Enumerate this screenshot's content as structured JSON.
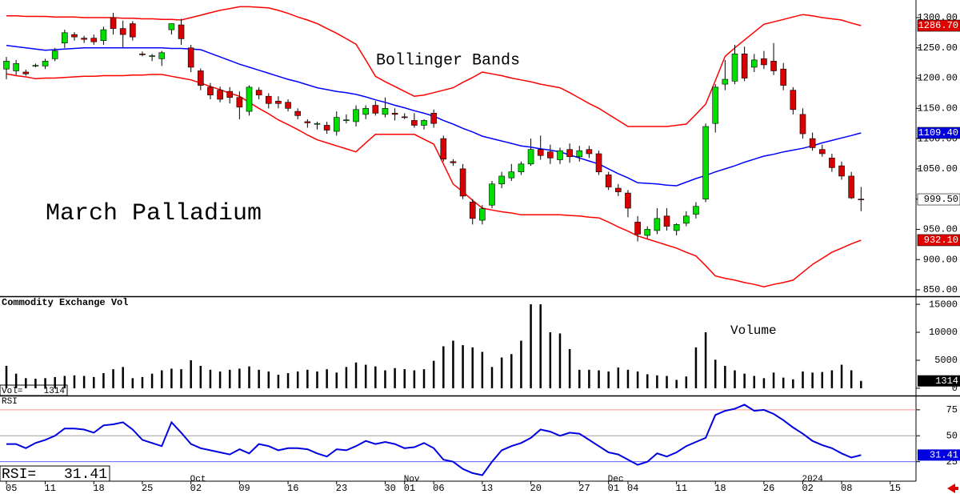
{
  "chart_data": [
    {
      "type": "candlestick",
      "title": "March Palladium",
      "annotation": "Bollinger Bands",
      "categories": [
        "05",
        null,
        null,
        null,
        "11",
        null,
        null,
        null,
        null,
        "18",
        null,
        null,
        null,
        null,
        "25",
        null,
        null,
        null,
        null,
        "02",
        null,
        null,
        null,
        null,
        "09",
        null,
        null,
        null,
        null,
        "16",
        null,
        null,
        null,
        null,
        "23",
        null,
        null,
        null,
        null,
        "30",
        null,
        "01",
        null,
        null,
        "06",
        null,
        null,
        null,
        null,
        "13",
        null,
        null,
        null,
        null,
        "20",
        null,
        null,
        null,
        null,
        "27",
        null,
        null,
        "01",
        null,
        "04",
        null,
        null,
        null,
        null,
        "11",
        null,
        null,
        null,
        "18",
        null,
        null,
        null,
        null,
        "26",
        null,
        null,
        null,
        "02",
        null,
        null,
        null,
        "08",
        null,
        null,
        null,
        null,
        "15"
      ],
      "months": [
        null,
        null,
        null,
        null,
        null,
        null,
        null,
        null,
        null,
        null,
        null,
        null,
        null,
        null,
        null,
        null,
        null,
        null,
        null,
        "Oct",
        null,
        null,
        null,
        null,
        null,
        null,
        null,
        null,
        null,
        null,
        null,
        null,
        null,
        null,
        null,
        null,
        null,
        null,
        null,
        null,
        null,
        "Nov",
        null,
        null,
        null,
        null,
        null,
        null,
        null,
        null,
        null,
        null,
        null,
        null,
        null,
        null,
        null,
        null,
        null,
        null,
        null,
        null,
        "Dec",
        null,
        null,
        null,
        null,
        null,
        null,
        null,
        null,
        null,
        null,
        null,
        null,
        null,
        null,
        null,
        null,
        null,
        null,
        null,
        "2024",
        null,
        null,
        null,
        null,
        null,
        null,
        null,
        null,
        null
      ],
      "open": [
        1215,
        1212,
        1210,
        1221,
        1220,
        1232,
        1258,
        1272,
        1266,
        1266,
        1262,
        1300,
        1282,
        1290,
        1240,
        1236,
        1232,
        1280,
        1288,
        1250,
        1212,
        1185,
        1180,
        1178,
        1168,
        1145,
        1180,
        1170,
        1162,
        1160,
        1145,
        1128,
        1125,
        1122,
        1112,
        1130,
        1128,
        1140,
        1155,
        1140,
        1142,
        1136,
        1130,
        1122,
        1142,
        1100,
        1062,
        1050,
        995,
        965,
        990,
        1025,
        1035,
        1045,
        1058,
        1082,
        1078,
        1065,
        1082,
        1070,
        1082,
        1075,
        1040,
        1018,
        1010,
        962,
        940,
        948,
        972,
        948,
        960,
        975,
        1000,
        1125,
        1190,
        1195,
        1240,
        1218,
        1232,
        1228,
        1215,
        1180,
        1140,
        1100,
        1082,
        1068,
        1055,
        1038,
        1000,
        null,
        null,
        null
      ],
      "high": [
        1235,
        1230,
        1214,
        1224,
        1232,
        1250,
        1280,
        1276,
        1270,
        1272,
        1285,
        1308,
        1295,
        1294,
        1244,
        1240,
        1245,
        1290,
        1298,
        1255,
        1216,
        1192,
        1186,
        1185,
        1178,
        1188,
        1185,
        1175,
        1170,
        1165,
        1150,
        1132,
        1128,
        1128,
        1145,
        1140,
        1155,
        1155,
        1162,
        1168,
        1150,
        1142,
        1142,
        1132,
        1148,
        1105,
        1066,
        1058,
        1000,
        990,
        1030,
        1045,
        1058,
        1062,
        1100,
        1105,
        1090,
        1085,
        1092,
        1088,
        1088,
        1080,
        1045,
        1025,
        1015,
        972,
        955,
        985,
        985,
        960,
        980,
        995,
        1125,
        1190,
        1230,
        1255,
        1252,
        1240,
        1245,
        1258,
        1225,
        1185,
        1150,
        1110,
        1090,
        1075,
        1062,
        1045,
        1020,
        null,
        null,
        null
      ],
      "low": [
        1198,
        1205,
        1204,
        1218,
        1215,
        1228,
        1250,
        1262,
        1258,
        1255,
        1255,
        1272,
        1250,
        1262,
        1236,
        1228,
        1220,
        1272,
        1255,
        1210,
        1180,
        1165,
        1160,
        1158,
        1132,
        1138,
        1165,
        1150,
        1150,
        1145,
        1132,
        1118,
        1115,
        1108,
        1105,
        1125,
        1120,
        1132,
        1138,
        1135,
        1130,
        1132,
        1118,
        1115,
        1118,
        1062,
        1055,
        1000,
        958,
        958,
        985,
        1018,
        1030,
        1040,
        1055,
        1065,
        1058,
        1058,
        1060,
        1062,
        1068,
        1040,
        1015,
        1005,
        970,
        930,
        935,
        942,
        948,
        940,
        955,
        968,
        995,
        1110,
        1180,
        1190,
        1195,
        1210,
        1215,
        1205,
        1180,
        1140,
        1100,
        1080,
        1070,
        1045,
        1032,
        1000,
        980,
        null,
        null,
        null
      ],
      "close": [
        1228,
        1224,
        1207,
        1221,
        1228,
        1245,
        1275,
        1268,
        1264,
        1260,
        1280,
        1282,
        1272,
        1268,
        1239,
        1237,
        1242,
        1290,
        1265,
        1218,
        1188,
        1172,
        1165,
        1168,
        1152,
        1185,
        1172,
        1158,
        1158,
        1150,
        1138,
        1126,
        1125,
        1114,
        1135,
        1131,
        1148,
        1150,
        1142,
        1150,
        1140,
        1135,
        1122,
        1130,
        1125,
        1066,
        1060,
        1005,
        968,
        984,
        1025,
        1038,
        1045,
        1058,
        1082,
        1072,
        1068,
        1080,
        1070,
        1080,
        1075,
        1045,
        1020,
        1012,
        985,
        942,
        950,
        968,
        955,
        958,
        972,
        988,
        1120,
        1185,
        1198,
        1240,
        1200,
        1230,
        1222,
        1212,
        1188,
        1148,
        1108,
        1085,
        1075,
        1052,
        1038,
        1002,
        999.5,
        null,
        null,
        null
      ],
      "up_color": "#00e000",
      "down_color": "#d80000",
      "bands": [
        {
          "color": "#ff0000",
          "values": [
            1303,
            1303,
            1302,
            1302,
            1302,
            1301,
            1301,
            1301,
            1300,
            1300,
            1300,
            1300,
            1299,
            1299,
            1298,
            1298,
            1297,
            1297,
            1296,
            1300,
            1304,
            1308,
            1312,
            1315,
            1318,
            1318,
            1317,
            1316,
            1312,
            1307,
            1301,
            1296,
            1290,
            1282,
            1274,
            1265,
            1256,
            1230,
            1203,
            1194,
            1186,
            1178,
            1170,
            1172,
            1176,
            1180,
            1184,
            1193,
            1201,
            1210,
            1207,
            1204,
            1200,
            1197,
            1194,
            1190,
            1187,
            1184,
            1176,
            1167,
            1158,
            1150,
            1140,
            1130,
            1120,
            1120,
            1120,
            1120,
            1120,
            1122,
            1124,
            1140,
            1157,
            1196,
            1236,
            1250,
            1263,
            1276,
            1289,
            1293,
            1297,
            1301,
            1305,
            1303,
            1300,
            1298,
            1296,
            1291,
            1286.7,
            null,
            null,
            null
          ]
        },
        {
          "color": "#0000ff",
          "values": [
            1254,
            1252,
            1250,
            1248,
            1246,
            1247,
            1248,
            1249,
            1250,
            1250,
            1250,
            1250,
            1250,
            1250,
            1250,
            1250,
            1250,
            1249,
            1249,
            1248,
            1247,
            1241,
            1235,
            1229,
            1223,
            1218,
            1213,
            1208,
            1203,
            1198,
            1194,
            1189,
            1184,
            1181,
            1178,
            1176,
            1173,
            1169,
            1164,
            1160,
            1155,
            1151,
            1146,
            1142,
            1137,
            1130,
            1124,
            1117,
            1111,
            1104,
            1100,
            1096,
            1092,
            1088,
            1086,
            1083,
            1081,
            1078,
            1073,
            1068,
            1063,
            1058,
            1050,
            1042,
            1035,
            1027,
            1026,
            1025,
            1023,
            1022,
            1028,
            1034,
            1039,
            1045,
            1050,
            1055,
            1061,
            1066,
            1071,
            1074,
            1078,
            1081,
            1084,
            1088,
            1093,
            1097,
            1101,
            1105,
            1109.4,
            null,
            null,
            null
          ]
        },
        {
          "color": "#ff0000",
          "values": [
            1207,
            1204,
            1202,
            1199,
            1200,
            1200,
            1201,
            1202,
            1203,
            1203,
            1204,
            1204,
            1204,
            1205,
            1205,
            1206,
            1206,
            1203,
            1200,
            1197,
            1192,
            1186,
            1181,
            1175,
            1170,
            1160,
            1150,
            1141,
            1131,
            1123,
            1115,
            1106,
            1098,
            1093,
            1088,
            1083,
            1078,
            1093,
            1107,
            1107,
            1107,
            1107,
            1107,
            1099,
            1091,
            1058,
            1025,
            1012,
            998,
            985,
            982,
            979,
            977,
            974,
            974,
            974,
            974,
            974,
            973,
            972,
            970,
            969,
            962,
            954,
            947,
            939,
            934,
            929,
            924,
            919,
            912,
            906,
            890,
            873,
            869,
            866,
            862,
            859,
            855,
            859,
            862,
            866,
            879,
            892,
            902,
            912,
            919,
            926,
            932.1,
            null,
            null,
            null
          ]
        }
      ],
      "ylim": [
        839.4,
        1329.1
      ],
      "yticks": [
        {
          "value": 1300,
          "label": "1300.00"
        },
        {
          "value": 1250,
          "label": "1250.00"
        },
        {
          "value": 1200,
          "label": "1200.00"
        },
        {
          "value": 1150,
          "label": "1150.00"
        },
        {
          "value": 1100,
          "label": "1100.00"
        },
        {
          "value": 1050,
          "label": "1050.00"
        },
        {
          "value": 1000,
          "label": "1000.00"
        },
        {
          "value": 950,
          "label": "950.00"
        },
        {
          "value": 900,
          "label": "900.00"
        },
        {
          "value": 850,
          "label": "850.00"
        }
      ],
      "markers": [
        {
          "value": 1286.7,
          "label": "1286.70",
          "color": "#e00000",
          "text_color": "#ffffff"
        },
        {
          "value": 1109.4,
          "label": "1109.40",
          "color": "#0000e0",
          "text_color": "#ffffff"
        },
        {
          "value": 999.5,
          "label": "999.50",
          "color": "#ffffff",
          "text_color": "#000000"
        },
        {
          "value": 932.1,
          "label": "932.10",
          "color": "#e00000",
          "text_color": "#ffffff"
        }
      ]
    },
    {
      "type": "bar",
      "title": "Commodity Exchange Vol",
      "annotation": "Volume",
      "readout": "Vol=",
      "values": [
        4000,
        2600,
        1800,
        1700,
        1800,
        2000,
        2200,
        2300,
        2200,
        2000,
        2700,
        3400,
        3800,
        1800,
        2000,
        2600,
        3200,
        3500,
        3400,
        5000,
        4000,
        3300,
        3000,
        3300,
        3500,
        3900,
        3300,
        3000,
        2400,
        2700,
        3000,
        3300,
        3000,
        3400,
        2800,
        3800,
        4600,
        4200,
        3900,
        3200,
        3600,
        3400,
        3200,
        3400,
        4900,
        7500,
        8500,
        7700,
        7300,
        6500,
        3800,
        5500,
        6100,
        8500,
        15000,
        15000,
        10000,
        9800,
        7000,
        3300,
        3300,
        3200,
        3000,
        3700,
        3300,
        3000,
        2500,
        2300,
        2200,
        1500,
        2100,
        7300,
        10000,
        5100,
        4000,
        3200,
        2600,
        2200,
        1800,
        2800,
        1900,
        1600,
        3000,
        2800,
        2900,
        3200,
        4200,
        3200,
        1314,
        null,
        null,
        null
      ],
      "color": "#000000",
      "marker_color": "#000000",
      "ylim": [
        -1300,
        16300
      ],
      "yticks": [
        15000,
        10000,
        5000,
        0
      ]
    },
    {
      "type": "line",
      "title": "RSI",
      "readout": "RSI=",
      "values": [
        42,
        42,
        38,
        43,
        46,
        50,
        57,
        57,
        56,
        53,
        60,
        61,
        63,
        56,
        46,
        43,
        40,
        63,
        53,
        42,
        38,
        36,
        34,
        32,
        37,
        33,
        42,
        40,
        36,
        38,
        38,
        37,
        33,
        30,
        37,
        36,
        40,
        45,
        42,
        44,
        42,
        38,
        39,
        43,
        38,
        27,
        25,
        18,
        14,
        12,
        25,
        36,
        40,
        43,
        48,
        56,
        54,
        50,
        53,
        52,
        46,
        40,
        34,
        32,
        27,
        22,
        25,
        33,
        30,
        34,
        40,
        44,
        48,
        70,
        74,
        76,
        80,
        74,
        75,
        71,
        65,
        58,
        52,
        45,
        41,
        38,
        33,
        29,
        31.41,
        null,
        null,
        null
      ],
      "color": "#0000e0",
      "marker_color": "#0000e0",
      "ylim": [
        7,
        88
      ],
      "yticks": [
        75,
        50,
        25
      ],
      "ref_colors": [
        "#ff9090",
        "#a0a0a0",
        "#6060ff"
      ]
    }
  ]
}
